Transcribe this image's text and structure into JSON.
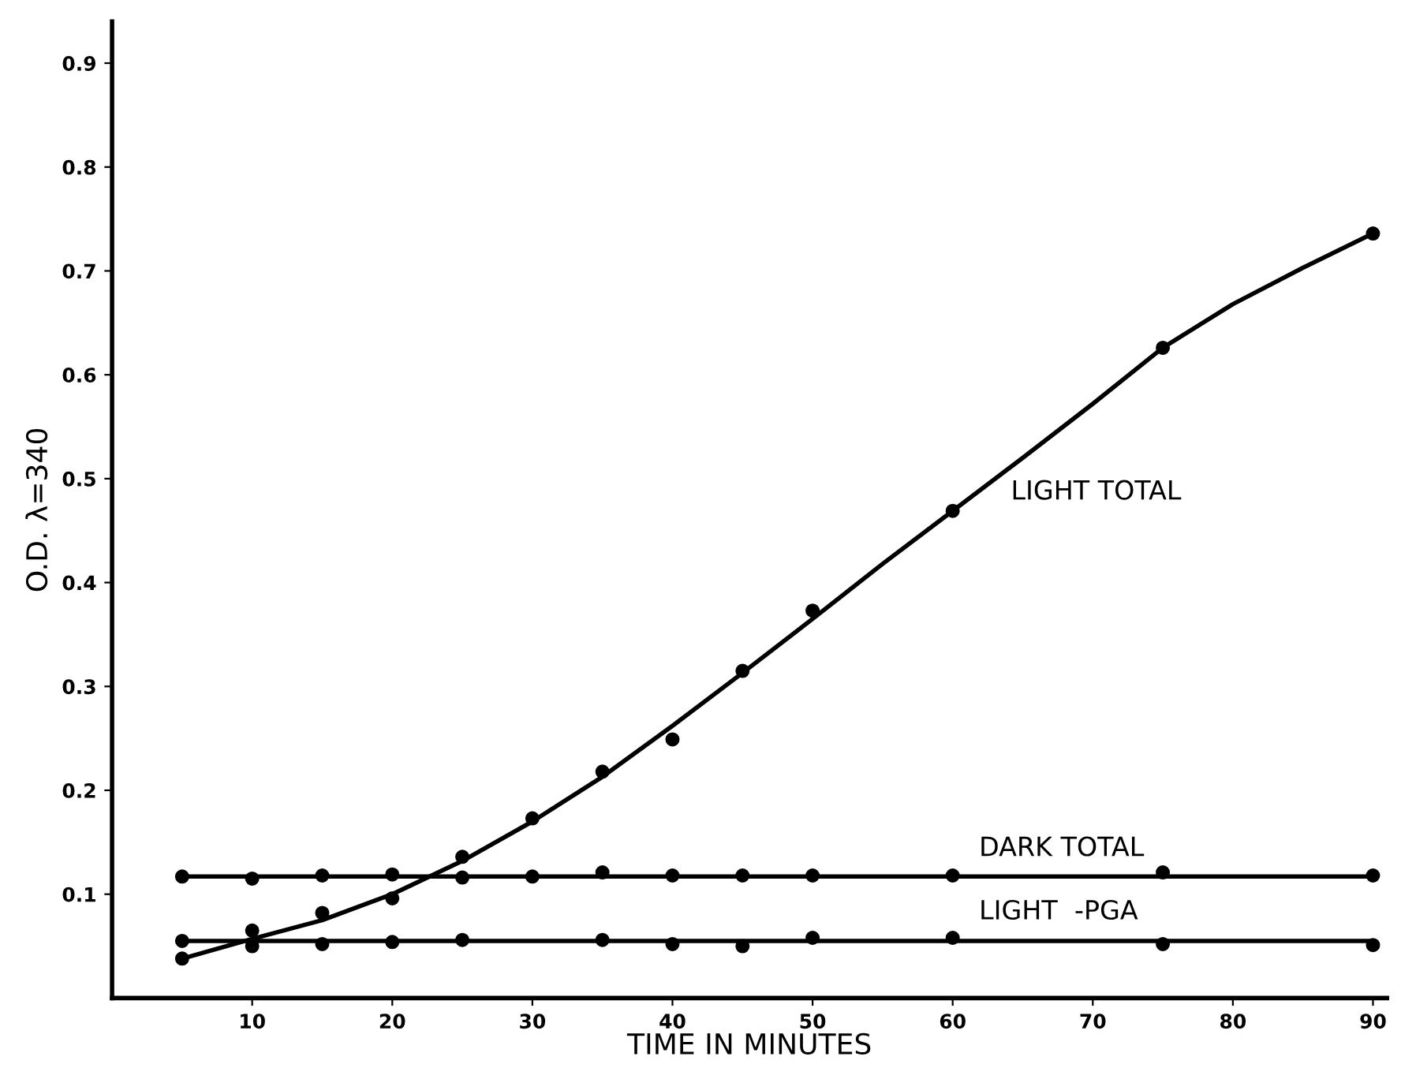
{
  "chart_data": {
    "type": "line",
    "xlabel": "TIME IN MINUTES",
    "ylabel": "O.D. λ=340",
    "xlim": [
      0,
      91
    ],
    "ylim": [
      0,
      0.94
    ],
    "xticks": [
      10,
      20,
      30,
      40,
      50,
      60,
      70,
      80,
      90
    ],
    "yticks": [
      0.1,
      0.2,
      0.3,
      0.4,
      0.5,
      0.6,
      0.7,
      0.8,
      0.9
    ],
    "grid": false,
    "legend": false,
    "line_style": "solid",
    "series": [
      {
        "type": "scatter",
        "marker": "circle",
        "color": "#000000",
        "x": [
          5,
          10,
          15,
          20,
          25,
          30,
          35,
          40,
          45,
          50,
          60,
          75,
          90
        ],
        "values": [
          0.038,
          0.065,
          0.082,
          0.096,
          0.136,
          0.173,
          0.218,
          0.249,
          0.315,
          0.373,
          0.469,
          0.626,
          0.736
        ]
      },
      {
        "marker": "none",
        "color": "#000000",
        "x": [
          5,
          10,
          15,
          20,
          25,
          30,
          35,
          40,
          45,
          50,
          55,
          60,
          65,
          70,
          75,
          80,
          85,
          90
        ],
        "values": [
          0.038,
          0.057,
          0.075,
          0.1,
          0.132,
          0.17,
          0.213,
          0.262,
          0.313,
          0.365,
          0.418,
          0.469,
          0.52,
          0.572,
          0.626,
          0.668,
          0.703,
          0.736
        ]
      },
      {
        "type": "scatter",
        "marker": "circle",
        "color": "#000000",
        "x": [
          5,
          10,
          15,
          20,
          25,
          30,
          35,
          40,
          45,
          50,
          60,
          75,
          90
        ],
        "values": [
          0.117,
          0.115,
          0.118,
          0.119,
          0.116,
          0.117,
          0.121,
          0.118,
          0.118,
          0.118,
          0.118,
          0.121,
          0.118
        ]
      },
      {
        "marker": "none",
        "color": "#000000",
        "x": [
          5,
          90
        ],
        "values": [
          0.117,
          0.117
        ]
      },
      {
        "type": "scatter",
        "marker": "circle",
        "color": "#000000",
        "x": [
          5,
          10,
          15,
          20,
          25,
          35,
          40,
          45,
          50,
          60,
          75,
          90
        ],
        "values": [
          0.055,
          0.05,
          0.052,
          0.054,
          0.056,
          0.056,
          0.052,
          0.05,
          0.058,
          0.058,
          0.052,
          0.051
        ]
      },
      {
        "marker": "none",
        "color": "#000000",
        "x": [
          5,
          90
        ],
        "values": [
          0.055,
          0.055
        ]
      }
    ],
    "annotations": [
      "LIGHT TOTAL",
      "DARK TOTAL",
      "LIGHT  -PGA"
    ]
  }
}
